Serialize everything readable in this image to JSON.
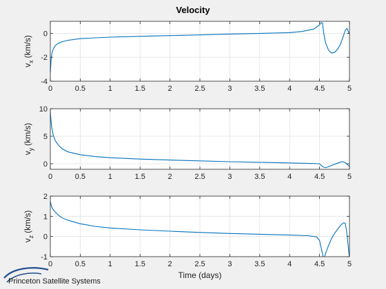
{
  "figure": {
    "title": "Velocity",
    "logo_text": "Princeton Satellite Systems",
    "colors": {
      "line": "#0072bd",
      "axes_bg": "#ffffff",
      "fig_bg": "#f0f0f0",
      "grid": "#e2e2e2",
      "logo": "#1f4e8c"
    }
  },
  "chart_data": [
    {
      "type": "line",
      "title": "Velocity",
      "ylabel_main": "v",
      "ylabel_sub": "x",
      "ylabel_unit": "(km/s)",
      "xlabel": "",
      "xlim": [
        0,
        5
      ],
      "ylim": [
        -4,
        1
      ],
      "xticks": [
        0,
        0.5,
        1,
        1.5,
        2,
        2.5,
        3,
        3.5,
        4,
        4.5,
        5
      ],
      "xtick_labels": [
        "0",
        "0.5",
        "1",
        "1.5",
        "2",
        "2.5",
        "3",
        "3.5",
        "4",
        "4.5",
        "5"
      ],
      "yticks": [
        -4,
        -2,
        0
      ],
      "ytick_labels": [
        "-4",
        "-2",
        "0"
      ],
      "grid": true,
      "series": [
        {
          "x": [
            0,
            0.01,
            0.02,
            0.03,
            0.05,
            0.08,
            0.1,
            0.15,
            0.2,
            0.3,
            0.5,
            0.75,
            1,
            1.5,
            2,
            2.5,
            3,
            3.5,
            4,
            4.2,
            4.4,
            4.5,
            4.53,
            4.55,
            4.57,
            4.6,
            4.65,
            4.7,
            4.75,
            4.8,
            4.85,
            4.9,
            4.93,
            4.96,
            4.98,
            5
          ],
          "y": [
            -3.3,
            -2.4,
            -1.9,
            -1.6,
            -1.3,
            -1.05,
            -0.95,
            -0.8,
            -0.7,
            -0.58,
            -0.45,
            -0.38,
            -0.32,
            -0.25,
            -0.19,
            -0.13,
            -0.07,
            -0.01,
            0.06,
            0.15,
            0.35,
            0.7,
            0.9,
            0.85,
            0.0,
            -0.8,
            -1.4,
            -1.65,
            -1.6,
            -1.35,
            -0.9,
            -0.2,
            0.25,
            0.4,
            0.15,
            -0.1
          ]
        }
      ]
    },
    {
      "type": "line",
      "ylabel_main": "v",
      "ylabel_sub": "y",
      "ylabel_unit": "(km/s)",
      "xlabel": "",
      "xlim": [
        0,
        5
      ],
      "ylim": [
        -1,
        10
      ],
      "xticks": [
        0,
        0.5,
        1,
        1.5,
        2,
        2.5,
        3,
        3.5,
        4,
        4.5,
        5
      ],
      "xtick_labels": [
        "0",
        "0.5",
        "1",
        "1.5",
        "2",
        "2.5",
        "3",
        "3.5",
        "4",
        "4.5",
        "5"
      ],
      "yticks": [
        0,
        5,
        10
      ],
      "ytick_labels": [
        "0",
        "5",
        "10"
      ],
      "grid": true,
      "series": [
        {
          "x": [
            0,
            0.01,
            0.02,
            0.03,
            0.05,
            0.08,
            0.1,
            0.15,
            0.2,
            0.3,
            0.5,
            0.75,
            1,
            1.5,
            2,
            2.5,
            3,
            3.5,
            4,
            4.3,
            4.5,
            4.53,
            4.56,
            4.6,
            4.65,
            4.7,
            4.8,
            4.88,
            4.93,
            4.97,
            5
          ],
          "y": [
            9.5,
            8.0,
            7.0,
            6.2,
            5.2,
            4.3,
            3.9,
            3.2,
            2.7,
            2.15,
            1.65,
            1.3,
            1.1,
            0.85,
            0.68,
            0.52,
            0.38,
            0.26,
            0.15,
            0.07,
            0.0,
            -0.3,
            -0.6,
            -0.7,
            -0.55,
            -0.3,
            0.1,
            0.4,
            0.2,
            -0.2,
            -0.5
          ]
        }
      ]
    },
    {
      "type": "line",
      "ylabel_main": "v",
      "ylabel_sub": "z",
      "ylabel_unit": "(km/s)",
      "xlabel": "Time (days)",
      "xlim": [
        0,
        5
      ],
      "ylim": [
        -1,
        2
      ],
      "xticks": [
        0,
        0.5,
        1,
        1.5,
        2,
        2.5,
        3,
        3.5,
        4,
        4.5,
        5
      ],
      "xtick_labels": [
        "0",
        "0.5",
        "1",
        "1.5",
        "2",
        "2.5",
        "3",
        "3.5",
        "4",
        "4.5",
        "5"
      ],
      "yticks": [
        -1,
        0,
        1,
        2
      ],
      "ytick_labels": [
        "-1",
        "0",
        "1",
        "2"
      ],
      "grid": true,
      "series": [
        {
          "x": [
            0,
            0.01,
            0.02,
            0.03,
            0.05,
            0.08,
            0.1,
            0.15,
            0.2,
            0.3,
            0.5,
            0.75,
            1,
            1.5,
            2,
            2.5,
            3,
            3.5,
            4,
            4.3,
            4.45,
            4.5,
            4.53,
            4.56,
            4.58,
            4.6,
            4.65,
            4.7,
            4.75,
            4.8,
            4.85,
            4.9,
            4.93,
            4.95,
            4.97,
            4.99,
            5
          ],
          "y": [
            1.75,
            1.6,
            1.5,
            1.42,
            1.32,
            1.22,
            1.15,
            1.02,
            0.92,
            0.8,
            0.63,
            0.5,
            0.42,
            0.33,
            0.26,
            0.2,
            0.15,
            0.11,
            0.07,
            0.04,
            -0.02,
            -0.2,
            -0.6,
            -1.0,
            -1.05,
            -0.85,
            -0.45,
            -0.1,
            0.15,
            0.35,
            0.55,
            0.68,
            0.65,
            0.3,
            -0.2,
            -0.8,
            -1.0
          ]
        }
      ]
    }
  ]
}
